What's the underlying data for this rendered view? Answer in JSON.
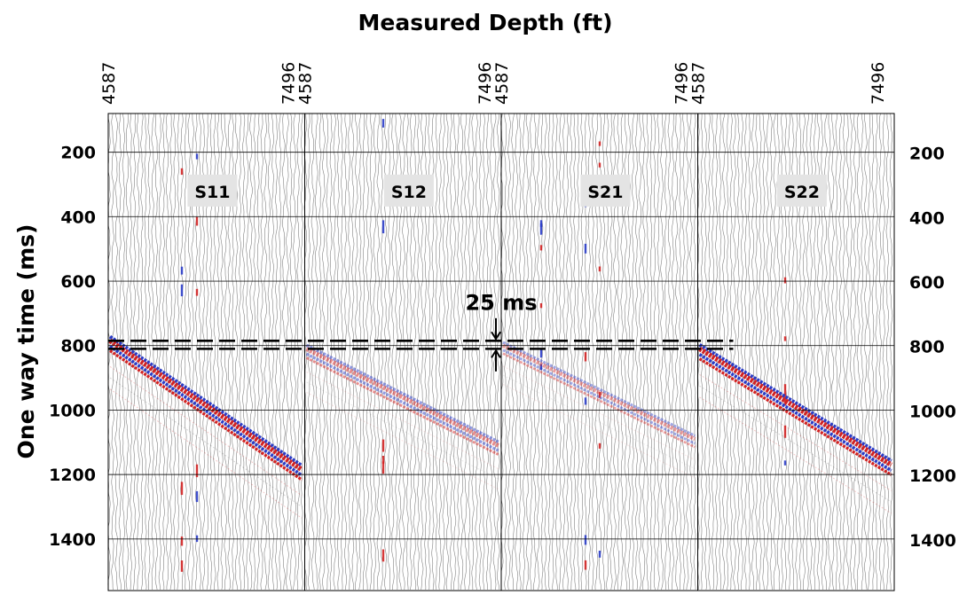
{
  "chart_data": {
    "type": "heatmap",
    "title": "",
    "xlabel": "Measured Depth (ft)",
    "ylabel": "One way time (ms)",
    "ylim": [
      80,
      1560
    ],
    "y_ticks": [
      200,
      400,
      600,
      800,
      1000,
      1200,
      1400
    ],
    "grid": true,
    "panels": [
      {
        "name": "S11",
        "x_ticks": [
          "4587",
          "7496"
        ],
        "depth_range": [
          4587,
          7496
        ],
        "event": {
          "start_time_ms": 785,
          "end_time_ms": 1185,
          "width_ms": 50,
          "strength": 1.0
        }
      },
      {
        "name": "S12",
        "x_ticks": [
          "4587",
          "7496"
        ],
        "depth_range": [
          4587,
          7496
        ],
        "event": {
          "start_time_ms": 810,
          "end_time_ms": 1110,
          "width_ms": 45,
          "strength": 0.35
        }
      },
      {
        "name": "S21",
        "x_ticks": [
          "4587",
          "7496"
        ],
        "depth_range": [
          4587,
          7496
        ],
        "event": {
          "start_time_ms": 800,
          "end_time_ms": 1090,
          "width_ms": 40,
          "strength": 0.25
        }
      },
      {
        "name": "S22",
        "x_ticks": [
          "4587",
          "7496"
        ],
        "depth_range": [
          4587,
          7496
        ],
        "event": {
          "start_time_ms": 810,
          "end_time_ms": 1170,
          "width_ms": 50,
          "strength": 1.0
        }
      }
    ],
    "reference_lines_ms": [
      785,
      810
    ],
    "annotations": [
      {
        "text": "25 ms",
        "time_ms": 797
      }
    ],
    "colors": {
      "positive": "#d22222",
      "negative": "#2a3cc8",
      "trace": "#555555",
      "grid": "#000000"
    }
  }
}
